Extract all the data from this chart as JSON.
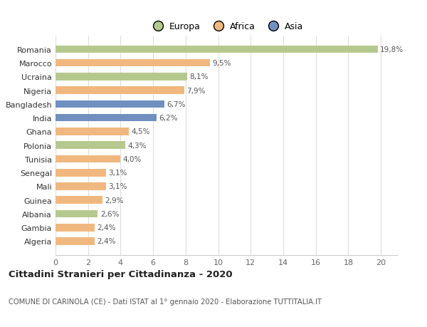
{
  "categories": [
    "Algeria",
    "Gambia",
    "Albania",
    "Guinea",
    "Mali",
    "Senegal",
    "Tunisia",
    "Polonia",
    "Ghana",
    "India",
    "Bangladesh",
    "Nigeria",
    "Ucraina",
    "Marocco",
    "Romania"
  ],
  "values": [
    2.4,
    2.4,
    2.6,
    2.9,
    3.1,
    3.1,
    4.0,
    4.3,
    4.5,
    6.2,
    6.7,
    7.9,
    8.1,
    9.5,
    19.8
  ],
  "labels": [
    "2,4%",
    "2,4%",
    "2,6%",
    "2,9%",
    "3,1%",
    "3,1%",
    "4,0%",
    "4,3%",
    "4,5%",
    "6,2%",
    "6,7%",
    "7,9%",
    "8,1%",
    "9,5%",
    "19,8%"
  ],
  "continents": [
    "Africa",
    "Africa",
    "Europa",
    "Africa",
    "Africa",
    "Africa",
    "Africa",
    "Europa",
    "Africa",
    "Asia",
    "Asia",
    "Africa",
    "Europa",
    "Africa",
    "Europa"
  ],
  "colors": {
    "Europa": "#b5c98e",
    "Africa": "#f0b87e",
    "Asia": "#7090bf"
  },
  "legend_labels": [
    "Europa",
    "Africa",
    "Asia"
  ],
  "legend_colors": [
    "#b5c98e",
    "#f0b87e",
    "#7090bf"
  ],
  "title": "Cittadini Stranieri per Cittadinanza - 2020",
  "subtitle": "COMUNE DI CARINOLA (CE) - Dati ISTAT al 1° gennaio 2020 - Elaborazione TUTTITALIA.IT",
  "xlim": [
    0,
    21
  ],
  "xticks": [
    0,
    2,
    4,
    6,
    8,
    10,
    12,
    14,
    16,
    18,
    20
  ],
  "background_color": "#ffffff",
  "grid_color": "#dddddd"
}
